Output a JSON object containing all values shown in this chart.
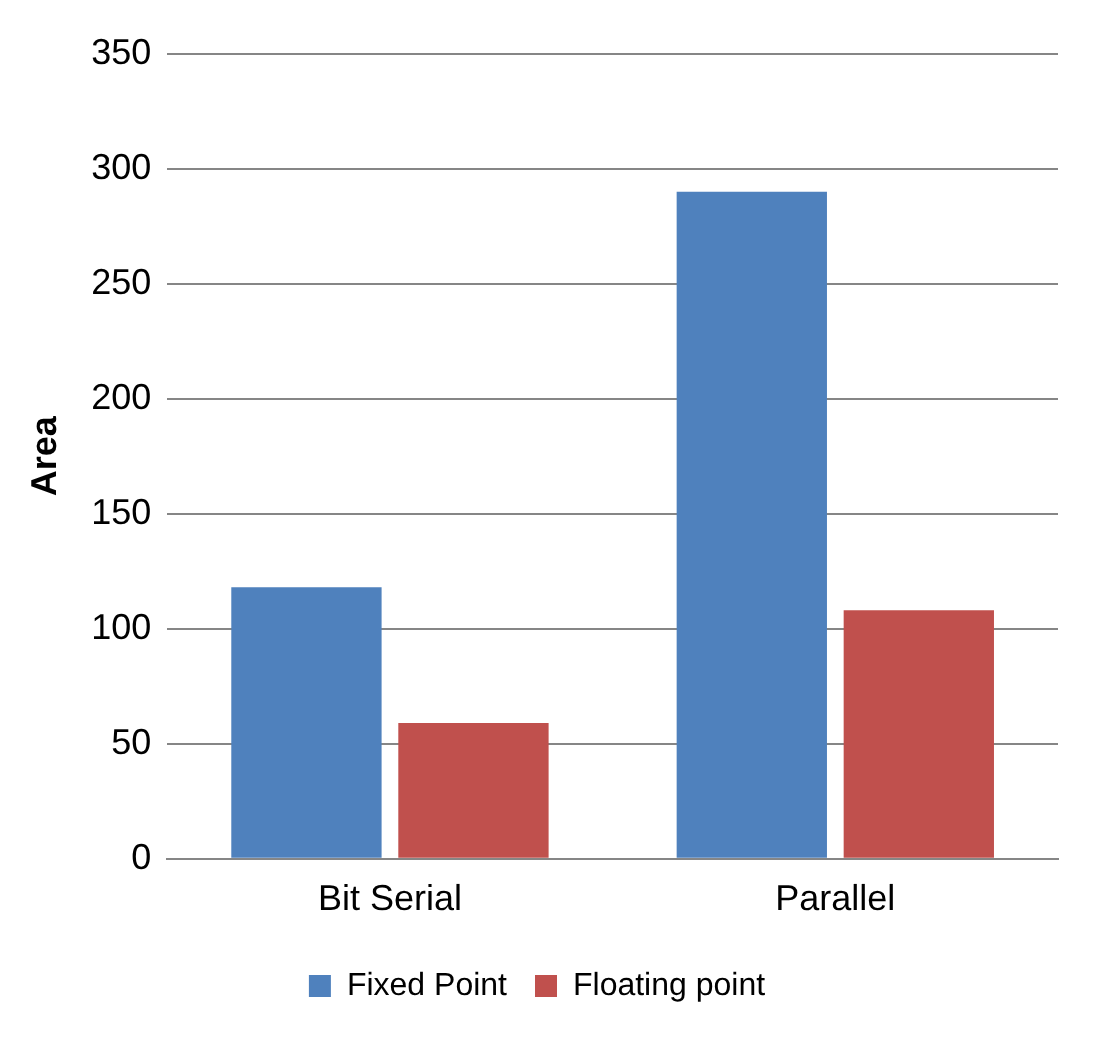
{
  "chart_data": {
    "type": "bar",
    "ylabel": "Area",
    "categories": [
      "Bit Serial",
      "Parallel"
    ],
    "series": [
      {
        "name": "Fixed Point",
        "color": "#4f81bd",
        "values": [
          118,
          290
        ]
      },
      {
        "name": "Floating point",
        "color": "#c0504d",
        "values": [
          59,
          108
        ]
      }
    ],
    "ylim": [
      0,
      350
    ],
    "yticks": [
      0,
      50,
      100,
      150,
      200,
      250,
      300,
      350
    ],
    "grid": "y",
    "legend": "bottom"
  }
}
